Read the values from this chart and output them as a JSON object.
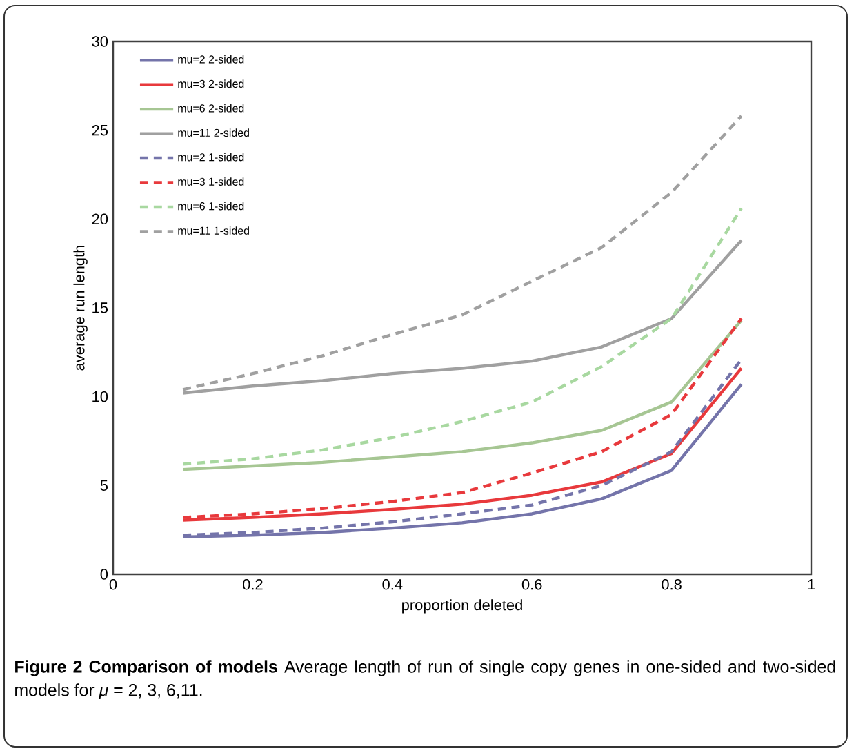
{
  "chart_data": {
    "type": "line",
    "xlabel": "proportion deleted",
    "ylabel": "average run length",
    "x": [
      0.1,
      0.2,
      0.3,
      0.4,
      0.5,
      0.6,
      0.7,
      0.8,
      0.9
    ],
    "xlim": [
      0,
      1
    ],
    "xticks": [
      0,
      0.2,
      0.4,
      0.6,
      0.8,
      1
    ],
    "ylim": [
      0,
      30
    ],
    "yticks": [
      0,
      5,
      10,
      15,
      20,
      25,
      30
    ],
    "grid": false,
    "legend": "top left",
    "marker": "none",
    "series": [
      {
        "name": "mu=2 2-sided",
        "color": "#7474aa",
        "line_style": "solid",
        "values": [
          2.1,
          2.2,
          2.35,
          2.6,
          2.9,
          3.4,
          4.25,
          5.85,
          10.7
        ]
      },
      {
        "name": "mu=3 2-sided",
        "color": "#e8393c",
        "line_style": "solid",
        "values": [
          3.05,
          3.2,
          3.4,
          3.65,
          3.95,
          4.45,
          5.2,
          6.8,
          11.6
        ]
      },
      {
        "name": "mu=6 2-sided",
        "color": "#a6c693",
        "line_style": "solid",
        "values": [
          5.9,
          6.1,
          6.3,
          6.6,
          6.9,
          7.4,
          8.1,
          9.7,
          14.3
        ]
      },
      {
        "name": "mu=11 2-sided",
        "color": "#a0a0a0",
        "line_style": "solid",
        "values": [
          10.2,
          10.6,
          10.9,
          11.3,
          11.6,
          12.0,
          12.8,
          14.4,
          18.8
        ]
      },
      {
        "name": "mu=2 1-sided",
        "color": "#7474aa",
        "line_style": "dashed",
        "values": [
          2.2,
          2.35,
          2.6,
          2.95,
          3.4,
          3.9,
          5.0,
          6.9,
          12.1
        ]
      },
      {
        "name": "mu=3 1-sided",
        "color": "#e8393c",
        "line_style": "dashed",
        "values": [
          3.2,
          3.4,
          3.7,
          4.1,
          4.6,
          5.7,
          6.9,
          9.0,
          14.4
        ]
      },
      {
        "name": "mu=6 1-sided",
        "color": "#a8d8a0",
        "line_style": "dashed",
        "values": [
          6.2,
          6.5,
          7.0,
          7.7,
          8.6,
          9.7,
          11.7,
          14.4,
          20.6
        ]
      },
      {
        "name": "mu=11 1-sided",
        "color": "#a0a0a0",
        "line_style": "dashed",
        "values": [
          10.4,
          11.3,
          12.3,
          13.5,
          14.6,
          16.5,
          18.4,
          21.5,
          25.8
        ]
      }
    ],
    "annotations": [
      "**Figure 2 Comparison of models** Average length of run of single copy genes in one-sided and two-sided models for *μ* = 2, 3, 6,11."
    ]
  }
}
